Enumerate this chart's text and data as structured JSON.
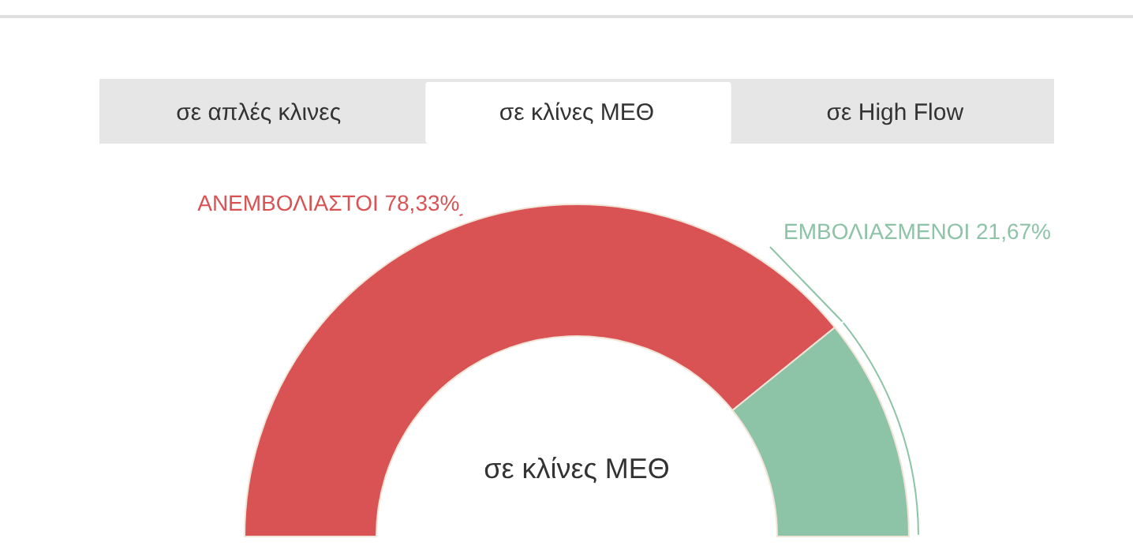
{
  "chart_data": {
    "type": "donut",
    "title": "σε κλίνες ΜΕΘ",
    "categories": [
      "ΑΝΕΜΒΟΛΙΑΣΤΟΙ",
      "ΕΜΒΟΛΙΑΣΜΕΝΟΙ"
    ],
    "values": [
      78.33,
      21.67
    ],
    "colors": [
      "#d95355",
      "#8dc3a7"
    ],
    "value_labels": [
      "78,33%",
      "21,67%"
    ],
    "annotations": [
      "σε απλές κλινες",
      "σε κλίνες ΜΕΘ",
      "σε High Flow"
    ]
  }
}
